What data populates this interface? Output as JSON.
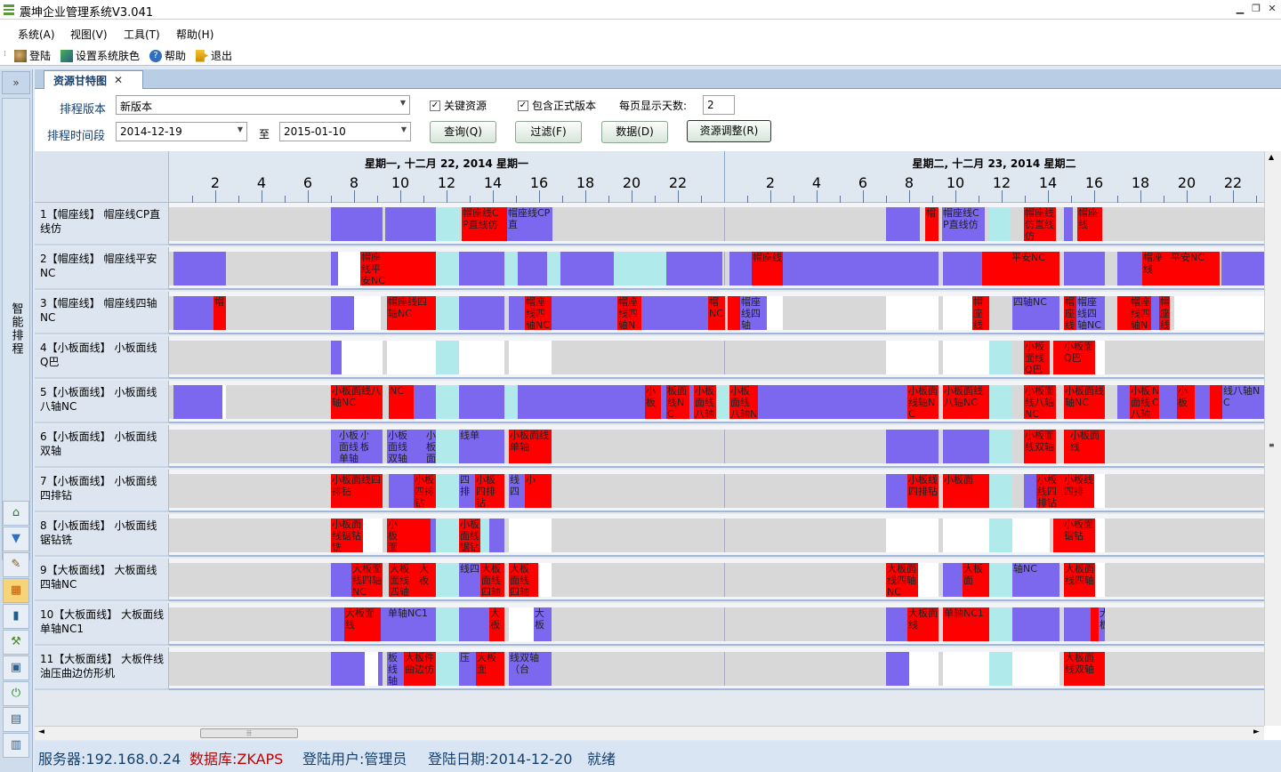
{
  "window": {
    "title": "震坤企业管理系统V3.041"
  },
  "menu": [
    "系统(A)",
    "视图(V)",
    "工具(T)",
    "帮助(H)"
  ],
  "toolbar": [
    {
      "label": "登陆",
      "icon": "login-icon"
    },
    {
      "label": "设置系统肤色",
      "icon": "skin-icon"
    },
    {
      "label": "帮助",
      "icon": "help-icon"
    },
    {
      "label": "退出",
      "icon": "exit-icon"
    }
  ],
  "sidebar": {
    "collapse": "»",
    "tab_label": "智能排程"
  },
  "tab": {
    "label": "资源甘特图",
    "close": "✕"
  },
  "filters": {
    "version_label": "排程版本",
    "version_value": "新版本",
    "key_resource": "关键资源",
    "include_official": "包含正式版本",
    "days_per_page_label": "每页显示天数:",
    "days_per_page": "2",
    "range_label": "排程时间段",
    "start": "2014-12-19",
    "to": "至",
    "end": "2015-01-10",
    "buttons": [
      "查询(Q)",
      "过滤(F)",
      "数据(D)",
      "资源调整(R)"
    ]
  },
  "timeline": {
    "days": [
      "星期一, 十二月 22, 2014   星期一",
      "星期二, 十二月 23, 2014   星期二"
    ],
    "hours": [
      "2",
      "4",
      "6",
      "8",
      "10",
      "12",
      "14",
      "16",
      "18",
      "20",
      "22"
    ]
  },
  "rows": [
    {
      "label": "1【帽座线】 帽座线CP直线仿",
      "segs": [
        [
          182,
          240,
          "b",
          ""
        ],
        [
          243,
          300,
          "b",
          ""
        ],
        [
          300,
          326,
          "c",
          ""
        ],
        [
          329,
          373,
          "r",
          "帽座线CP直线仿"
        ],
        [
          373,
          380,
          "r",
          ""
        ],
        [
          380,
          431,
          "b",
          "帽座线CP直"
        ],
        [
          806,
          844,
          "b",
          ""
        ],
        [
          850,
          865,
          "r",
          "帽"
        ],
        [
          869,
          917,
          "b",
          "帽座线CP直线仿"
        ],
        [
          922,
          946,
          "c",
          ""
        ],
        [
          961,
          997,
          "r",
          "帽座线仿直线仿"
        ],
        [
          1006,
          1016,
          "b",
          ""
        ],
        [
          1021,
          1049,
          "r",
          "帽座线"
        ]
      ]
    },
    {
      "label": "2【帽座线】 帽座线平安NC",
      "segs": [
        [
          5,
          64,
          "b",
          ""
        ],
        [
          182,
          190,
          "b",
          ""
        ],
        [
          190,
          215,
          "w",
          ""
        ],
        [
          215,
          245,
          "r",
          "帽座线平安NC"
        ],
        [
          245,
          300,
          "r",
          ""
        ],
        [
          300,
          326,
          "c",
          ""
        ],
        [
          326,
          377,
          "b",
          ""
        ],
        [
          377,
          392,
          "c",
          ""
        ],
        [
          392,
          425,
          "b",
          ""
        ],
        [
          425,
          440,
          "c",
          ""
        ],
        [
          440,
          500,
          "b",
          ""
        ],
        [
          500,
          546,
          "c",
          ""
        ],
        [
          546,
          559,
          "c",
          ""
        ],
        [
          559,
          622,
          "b",
          ""
        ],
        [
          630,
          655,
          "b",
          ""
        ],
        [
          655,
          690,
          "r",
          "帽座线"
        ],
        [
          690,
          806,
          "b",
          ""
        ],
        [
          806,
          865,
          "b",
          ""
        ],
        [
          870,
          914,
          "b",
          ""
        ],
        [
          914,
          946,
          "r",
          ""
        ],
        [
          946,
          1001,
          "r",
          "平安NC"
        ],
        [
          1006,
          1052,
          "b",
          ""
        ],
        [
          1066,
          1094,
          "b",
          ""
        ],
        [
          1094,
          1125,
          "r",
          "帽座线"
        ],
        [
          1125,
          1181,
          "r",
          "平安NC"
        ],
        [
          1183,
          1231,
          "b",
          ""
        ]
      ]
    },
    {
      "label": "3【帽座线】 帽座线四轴NC",
      "segs": [
        [
          5,
          50,
          "b",
          ""
        ],
        [
          50,
          64,
          "r",
          "帽"
        ],
        [
          182,
          208,
          "b",
          ""
        ],
        [
          208,
          238,
          "w",
          ""
        ],
        [
          245,
          300,
          "r",
          "帽座线四轴NC"
        ],
        [
          300,
          326,
          "c",
          ""
        ],
        [
          326,
          377,
          "b",
          ""
        ],
        [
          382,
          400,
          "b",
          ""
        ],
        [
          400,
          430,
          "r",
          "帽座线四轴NC"
        ],
        [
          430,
          442,
          "b",
          ""
        ],
        [
          442,
          504,
          "b",
          ""
        ],
        [
          504,
          531,
          "r",
          "帽座线四轴NC"
        ],
        [
          531,
          553,
          "b",
          ""
        ],
        [
          553,
          606,
          "b",
          ""
        ],
        [
          606,
          625,
          "r",
          "帽NC"
        ],
        [
          628,
          642,
          "r",
          ""
        ],
        [
          642,
          672,
          "b",
          "帽座线四轴"
        ],
        [
          672,
          690,
          "w",
          ""
        ],
        [
          806,
          865,
          "w",
          ""
        ],
        [
          870,
          903,
          "w",
          ""
        ],
        [
          903,
          922,
          "r",
          "帽座线"
        ],
        [
          948,
          1001,
          "b",
          "四轴NC"
        ],
        [
          1006,
          1020,
          "r",
          "帽座线"
        ],
        [
          1020,
          1052,
          "b",
          "帽座线四轴NC"
        ],
        [
          1066,
          1080,
          "r",
          ""
        ],
        [
          1080,
          1104,
          "r",
          "帽座线四轴N"
        ],
        [
          1104,
          1113,
          "b",
          ""
        ],
        [
          1113,
          1125,
          "r",
          "帽座线"
        ],
        [
          1130,
          1170,
          "w",
          ""
        ],
        [
          1170,
          1231,
          "w",
          ""
        ]
      ]
    },
    {
      "label": "4【小板面线】 小板面线Q巴",
      "segs": [
        [
          182,
          194,
          "b",
          ""
        ],
        [
          194,
          240,
          "w",
          ""
        ],
        [
          245,
          300,
          "w",
          ""
        ],
        [
          300,
          326,
          "c",
          ""
        ],
        [
          326,
          377,
          "w",
          ""
        ],
        [
          382,
          430,
          "w",
          ""
        ],
        [
          806,
          865,
          "w",
          ""
        ],
        [
          870,
          922,
          "w",
          ""
        ],
        [
          922,
          948,
          "c",
          ""
        ],
        [
          961,
          990,
          "r",
          "小板面线Q巴"
        ],
        [
          994,
          1005,
          "r",
          ""
        ],
        [
          1005,
          1041,
          "r",
          "小板面Q巴"
        ],
        [
          1041,
          1052,
          "w",
          ""
        ]
      ]
    },
    {
      "label": "5【小板面线】 小板面线八轴NC",
      "segs": [
        [
          5,
          60,
          "b",
          ""
        ],
        [
          60,
          64,
          "w",
          ""
        ],
        [
          182,
          240,
          "r",
          "小板面线八轴NC"
        ],
        [
          247,
          275,
          "r",
          "NC"
        ],
        [
          275,
          300,
          "b",
          ""
        ],
        [
          300,
          326,
          "c",
          ""
        ],
        [
          326,
          377,
          "b",
          ""
        ],
        [
          377,
          392,
          "c",
          ""
        ],
        [
          392,
          440,
          "b",
          ""
        ],
        [
          440,
          500,
          "b",
          ""
        ],
        [
          500,
          535,
          "b",
          ""
        ],
        [
          535,
          553,
          "r",
          "小板"
        ],
        [
          553,
          559,
          "b",
          ""
        ],
        [
          559,
          585,
          "r",
          "板面线NC"
        ],
        [
          585,
          590,
          "b",
          ""
        ],
        [
          590,
          615,
          "r",
          "小板面线八轴"
        ],
        [
          615,
          630,
          "c",
          ""
        ],
        [
          630,
          662,
          "r",
          "小板面线八轴NC"
        ],
        [
          662,
          806,
          "b",
          ""
        ],
        [
          806,
          830,
          "b",
          ""
        ],
        [
          830,
          865,
          "r",
          "小板面线轴NC"
        ],
        [
          870,
          922,
          "r",
          "小板面线八轴NC"
        ],
        [
          922,
          948,
          "c",
          ""
        ],
        [
          961,
          997,
          "r",
          "小板面线八轴NC"
        ],
        [
          1006,
          1052,
          "r",
          "小板面线轴NC"
        ],
        [
          1066,
          1080,
          "b",
          ""
        ],
        [
          1080,
          1104,
          "r",
          "小板面线八轴"
        ],
        [
          1104,
          1113,
          "r",
          "NC"
        ],
        [
          1113,
          1133,
          "b",
          ""
        ],
        [
          1133,
          1153,
          "r",
          "小板"
        ],
        [
          1153,
          1170,
          "b",
          ""
        ],
        [
          1170,
          1184,
          "r",
          ""
        ],
        [
          1184,
          1231,
          "b",
          "线八轴NC"
        ]
      ]
    },
    {
      "label": "6【小板面线】 小板面线双轴",
      "segs": [
        [
          182,
          190,
          "b",
          ""
        ],
        [
          190,
          214,
          "b",
          "小板面线单轴"
        ],
        [
          214,
          224,
          "b",
          "小板"
        ],
        [
          224,
          240,
          "b",
          ""
        ],
        [
          245,
          268,
          "b",
          "小板面线双轴"
        ],
        [
          268,
          288,
          "b",
          ""
        ],
        [
          288,
          300,
          "b",
          "小板面线单轴"
        ],
        [
          300,
          326,
          "c",
          ""
        ],
        [
          326,
          377,
          "b",
          "线单"
        ],
        [
          382,
          430,
          "r",
          "小板面线单轴"
        ],
        [
          806,
          865,
          "b",
          ""
        ],
        [
          870,
          922,
          "b",
          ""
        ],
        [
          922,
          948,
          "c",
          ""
        ],
        [
          961,
          997,
          "r",
          "小板面线双轴"
        ],
        [
          1006,
          1012,
          "r",
          ""
        ],
        [
          1012,
          1052,
          "r",
          "小板面线"
        ]
      ]
    },
    {
      "label": "7【小板面线】 小板面线四排钻",
      "segs": [
        [
          182,
          240,
          "r",
          "小板面线四排钻"
        ],
        [
          247,
          275,
          "b",
          ""
        ],
        [
          275,
          300,
          "r",
          "小板四排钻"
        ],
        [
          300,
          326,
          "c",
          ""
        ],
        [
          326,
          344,
          "b",
          "四排"
        ],
        [
          344,
          377,
          "r",
          "小板四排钻"
        ],
        [
          382,
          400,
          "b",
          "线四"
        ],
        [
          400,
          430,
          "r",
          "小"
        ],
        [
          806,
          830,
          "b",
          ""
        ],
        [
          830,
          865,
          "r",
          "小板线四排钻"
        ],
        [
          870,
          922,
          "r",
          "小板面"
        ],
        [
          922,
          948,
          "c",
          ""
        ],
        [
          961,
          975,
          "b",
          ""
        ],
        [
          975,
          1005,
          "r",
          "小板线四排钻"
        ],
        [
          1005,
          1040,
          "r",
          "小板线四排"
        ],
        [
          1040,
          1052,
          "w",
          ""
        ]
      ]
    },
    {
      "label": "8【小板面线】 小板面线锯钻铣",
      "segs": [
        [
          182,
          218,
          "r",
          "小板面线锯钻铣"
        ],
        [
          218,
          240,
          "w",
          ""
        ],
        [
          245,
          266,
          "r",
          "小板面线锯钻铣"
        ],
        [
          266,
          294,
          "r",
          ""
        ],
        [
          294,
          300,
          "b",
          ""
        ],
        [
          300,
          326,
          "c",
          ""
        ],
        [
          326,
          350,
          "r",
          "小板面线锯钻"
        ],
        [
          350,
          360,
          "c",
          ""
        ],
        [
          360,
          377,
          "b",
          ""
        ],
        [
          382,
          430,
          "w",
          ""
        ],
        [
          806,
          865,
          "w",
          ""
        ],
        [
          870,
          922,
          "w",
          ""
        ],
        [
          922,
          948,
          "c",
          ""
        ],
        [
          948,
          990,
          "w",
          ""
        ],
        [
          994,
          1005,
          "r",
          ""
        ],
        [
          1005,
          1041,
          "r",
          "小板面锯钻"
        ],
        [
          1041,
          1052,
          "w",
          ""
        ]
      ]
    },
    {
      "label": "9【大板面线】 大板面线四轴NC",
      "segs": [
        [
          182,
          205,
          "b",
          ""
        ],
        [
          205,
          240,
          "r",
          "大板面线四轴NC"
        ],
        [
          247,
          280,
          "r",
          "大板面线四轴"
        ],
        [
          280,
          300,
          "r",
          "大板"
        ],
        [
          300,
          326,
          "c",
          ""
        ],
        [
          326,
          350,
          "b",
          "线四"
        ],
        [
          350,
          377,
          "r",
          "大板面线四轴"
        ],
        [
          382,
          415,
          "r",
          "大板面线四轴"
        ],
        [
          415,
          430,
          "w",
          ""
        ],
        [
          806,
          842,
          "r",
          "大板面线四轴NC"
        ],
        [
          842,
          865,
          "w",
          ""
        ],
        [
          870,
          892,
          "b",
          ""
        ],
        [
          892,
          922,
          "r",
          "大板面"
        ],
        [
          922,
          948,
          "c",
          ""
        ],
        [
          948,
          1001,
          "b",
          "轴NC"
        ],
        [
          1006,
          1041,
          "r",
          "大板面线四轴"
        ],
        [
          1041,
          1052,
          "w",
          ""
        ]
      ]
    },
    {
      "label": "10【大板面线】 大板面线单轴NC1",
      "segs": [
        [
          182,
          197,
          "b",
          ""
        ],
        [
          197,
          238,
          "r",
          "大板面线"
        ],
        [
          238,
          245,
          "b",
          ""
        ],
        [
          245,
          300,
          "b",
          "单轴NC1"
        ],
        [
          300,
          326,
          "c",
          ""
        ],
        [
          326,
          360,
          "b",
          ""
        ],
        [
          360,
          377,
          "r",
          "大板"
        ],
        [
          382,
          397,
          "w",
          ""
        ],
        [
          397,
          410,
          "w",
          ""
        ],
        [
          410,
          430,
          "b",
          "大板"
        ],
        [
          806,
          830,
          "b",
          ""
        ],
        [
          830,
          865,
          "r",
          "大板面线"
        ],
        [
          870,
          922,
          "r",
          "单轴NC1"
        ],
        [
          922,
          948,
          "c",
          ""
        ],
        [
          948,
          1001,
          "b",
          ""
        ],
        [
          1006,
          1036,
          "b",
          ""
        ],
        [
          1036,
          1045,
          "r",
          ""
        ],
        [
          1045,
          1052,
          "b",
          "大板"
        ]
      ]
    },
    {
      "label": "11【大板面线】 大板件线油压曲边仿形机",
      "segs": [
        [
          182,
          220,
          "b",
          ""
        ],
        [
          220,
          235,
          "w",
          ""
        ],
        [
          235,
          240,
          "b",
          ""
        ],
        [
          245,
          264,
          "b",
          "板线轴"
        ],
        [
          264,
          300,
          "r",
          "大板件曲边仿"
        ],
        [
          300,
          326,
          "c",
          ""
        ],
        [
          326,
          345,
          "b",
          "压"
        ],
        [
          345,
          377,
          "r",
          "大板面"
        ],
        [
          382,
          430,
          "b",
          "线双轴（台"
        ],
        [
          806,
          832,
          "b",
          ""
        ],
        [
          832,
          865,
          "w",
          ""
        ],
        [
          870,
          922,
          "w",
          ""
        ],
        [
          922,
          948,
          "c",
          ""
        ],
        [
          948,
          1001,
          "w",
          ""
        ],
        [
          1006,
          1050,
          "r",
          "大板面线双轴"
        ],
        [
          1050,
          1052,
          "r",
          ""
        ]
      ]
    }
  ],
  "status": [
    "服务器:192.168.0.24",
    "数据库:ZKAPS",
    "登陆用户:管理员",
    "登陆日期:2014-12-20",
    "就绪"
  ]
}
